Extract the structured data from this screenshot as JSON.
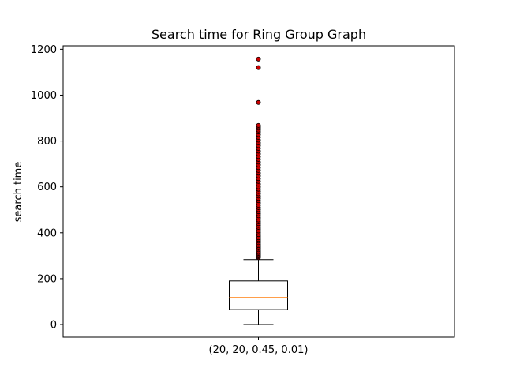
{
  "chart_data": {
    "type": "box",
    "title": "Search time for Ring Group Graph",
    "xlabel": "",
    "ylabel": "search time",
    "categories": [
      "(20, 20, 0.45, 0.01)"
    ],
    "ylim": [
      -55,
      1215
    ],
    "yticks": [
      0,
      200,
      400,
      600,
      800,
      1000,
      1200
    ],
    "grid": false,
    "box": {
      "whisker_low": 0,
      "q1": 65,
      "median": 118,
      "q3": 190,
      "whisker_high": 283
    },
    "outliers": [
      292,
      296,
      300,
      305,
      310,
      315,
      320,
      326,
      332,
      338,
      344,
      350,
      357,
      364,
      371,
      378,
      385,
      392,
      400,
      408,
      416,
      424,
      432,
      440,
      448,
      456,
      465,
      474,
      483,
      492,
      501,
      510,
      520,
      530,
      540,
      550,
      560,
      570,
      580,
      590,
      600,
      612,
      624,
      636,
      648,
      660,
      672,
      684,
      696,
      708,
      720,
      732,
      744,
      756,
      768,
      780,
      792,
      804,
      816,
      828,
      840,
      848,
      856,
      862,
      868,
      968,
      1120,
      1157
    ],
    "colors": {
      "box": "#000000",
      "median": "#ff7f0e",
      "outlier_fill": "#cc0000",
      "outlier_edge": "#000000"
    }
  }
}
